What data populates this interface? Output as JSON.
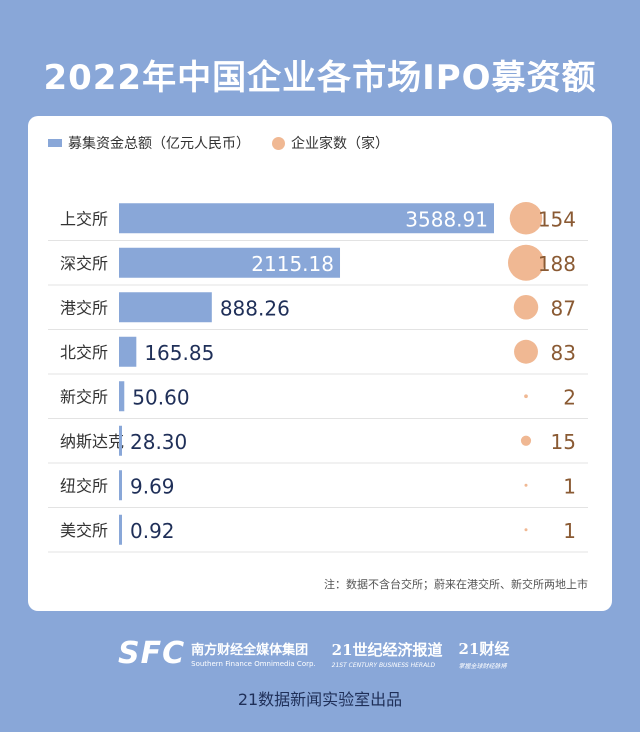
{
  "title": "2022年中国企业各市场IPO募资额",
  "legend": {
    "bar_label": "募集资金总额（亿元人民币）",
    "dot_label": "企业家数（家）"
  },
  "note": "注：数据不含台交所；蔚来在港交所、新交所两地上市",
  "footer": {
    "sfc": "SFC",
    "brand1_cn": "南方财经全媒体集团",
    "brand1_en": "Southern Finance Omnimedia Corp.",
    "brand2_cn": "21世纪经济报道",
    "brand2_en": "21ST CENTURY BUSINESS HERALD",
    "brand3_cn": "21财经",
    "brand3_en": "掌握全球财经脉搏",
    "credit": "21数据新闻实验室出品"
  },
  "colors": {
    "background": "#89a7d8",
    "bar": "#89a7d8",
    "dot": "#f0b893",
    "value_text": "#1f2f58",
    "count_text": "#8a5a33"
  },
  "chart_data": {
    "type": "bar",
    "orientation": "horizontal",
    "categories": [
      "上交所",
      "深交所",
      "港交所",
      "北交所",
      "新交所",
      "纳斯达克",
      "纽交所",
      "美交所"
    ],
    "series": [
      {
        "name": "募集资金总额（亿元人民币）",
        "values": [
          3588.91,
          2115.18,
          888.26,
          165.85,
          50.6,
          28.3,
          9.69,
          0.92
        ]
      },
      {
        "name": "企业家数（家）",
        "values": [
          154,
          188,
          87,
          83,
          2,
          15,
          1,
          1
        ]
      }
    ],
    "value_labels": [
      "3588.91",
      "2115.18",
      "888.26",
      "165.85",
      "50.60",
      "28.30",
      "9.69",
      "0.92"
    ],
    "count_labels": [
      "154",
      "188",
      "87",
      "83",
      "2",
      "15",
      "1",
      "1"
    ]
  }
}
